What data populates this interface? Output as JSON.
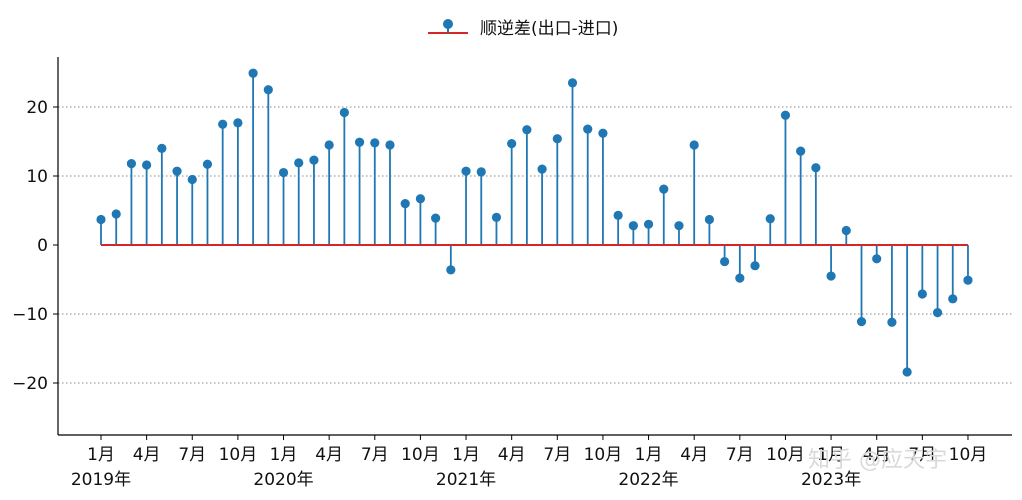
{
  "chart_data": {
    "type": "stem",
    "title": "",
    "xlabel": "",
    "ylabel": "",
    "ylim": [
      -27,
      27.5
    ],
    "yticks": [
      -20,
      -10,
      0,
      10,
      20
    ],
    "ytick_labels": [
      "−20",
      "−10",
      "0",
      "10",
      "20"
    ],
    "grid": "horizontal-dotted",
    "legend": {
      "label": "顺逆差(出口-进口)",
      "position": "top-center"
    },
    "colors": {
      "stem": "#1f77b4",
      "baseline": "#d62728"
    },
    "x": [
      "2019-01",
      "2019-02",
      "2019-03",
      "2019-04",
      "2019-05",
      "2019-06",
      "2019-07",
      "2019-08",
      "2019-09",
      "2019-10",
      "2019-11",
      "2019-12",
      "2020-01",
      "2020-02",
      "2020-03",
      "2020-04",
      "2020-05",
      "2020-06",
      "2020-07",
      "2020-08",
      "2020-09",
      "2020-10",
      "2020-11",
      "2020-12",
      "2021-01",
      "2021-02",
      "2021-03",
      "2021-04",
      "2021-05",
      "2021-06",
      "2021-07",
      "2021-08",
      "2021-09",
      "2021-10",
      "2021-11",
      "2021-12",
      "2022-01",
      "2022-02",
      "2022-03",
      "2022-04",
      "2022-05",
      "2022-06",
      "2022-07",
      "2022-08",
      "2022-09",
      "2022-10",
      "2022-11",
      "2022-12",
      "2023-01",
      "2023-02",
      "2023-03",
      "2023-04",
      "2023-05",
      "2023-06",
      "2023-07",
      "2023-08",
      "2023-09",
      "2023-10"
    ],
    "values": [
      3.7,
      4.5,
      11.8,
      11.6,
      14.0,
      10.7,
      9.5,
      11.7,
      17.5,
      17.7,
      24.9,
      22.5,
      10.5,
      11.9,
      12.3,
      14.5,
      19.2,
      14.9,
      14.8,
      14.5,
      6.0,
      6.7,
      3.9,
      -3.6,
      10.7,
      10.6,
      4.0,
      14.7,
      16.7,
      11.0,
      15.4,
      23.5,
      16.8,
      16.2,
      4.3,
      2.8,
      3.0,
      8.1,
      2.8,
      14.5,
      3.7,
      -2.4,
      -4.8,
      -3.0,
      3.8,
      18.8,
      13.6,
      11.2,
      -4.5,
      2.1,
      -11.1,
      -2.0,
      -11.2,
      -18.4,
      -7.1,
      -9.8,
      -7.8,
      -5.1
    ],
    "xtick_labels": [
      "1月",
      "4月",
      "7月",
      "10月",
      "1月",
      "4月",
      "7月",
      "10月",
      "1月",
      "4月",
      "7月",
      "10月",
      "1月",
      "4月",
      "7月",
      "10月",
      "1月",
      "4月",
      "7月",
      "10月"
    ],
    "xtick_index": [
      0,
      3,
      6,
      9,
      12,
      15,
      18,
      21,
      24,
      27,
      30,
      33,
      36,
      39,
      42,
      45,
      48,
      51,
      54,
      57
    ],
    "year_labels": [
      "2019年",
      "2020年",
      "2021年",
      "2022年",
      "2023年"
    ],
    "year_index": [
      0,
      12,
      24,
      36,
      48
    ]
  },
  "watermark": "知乎 @应天宇"
}
